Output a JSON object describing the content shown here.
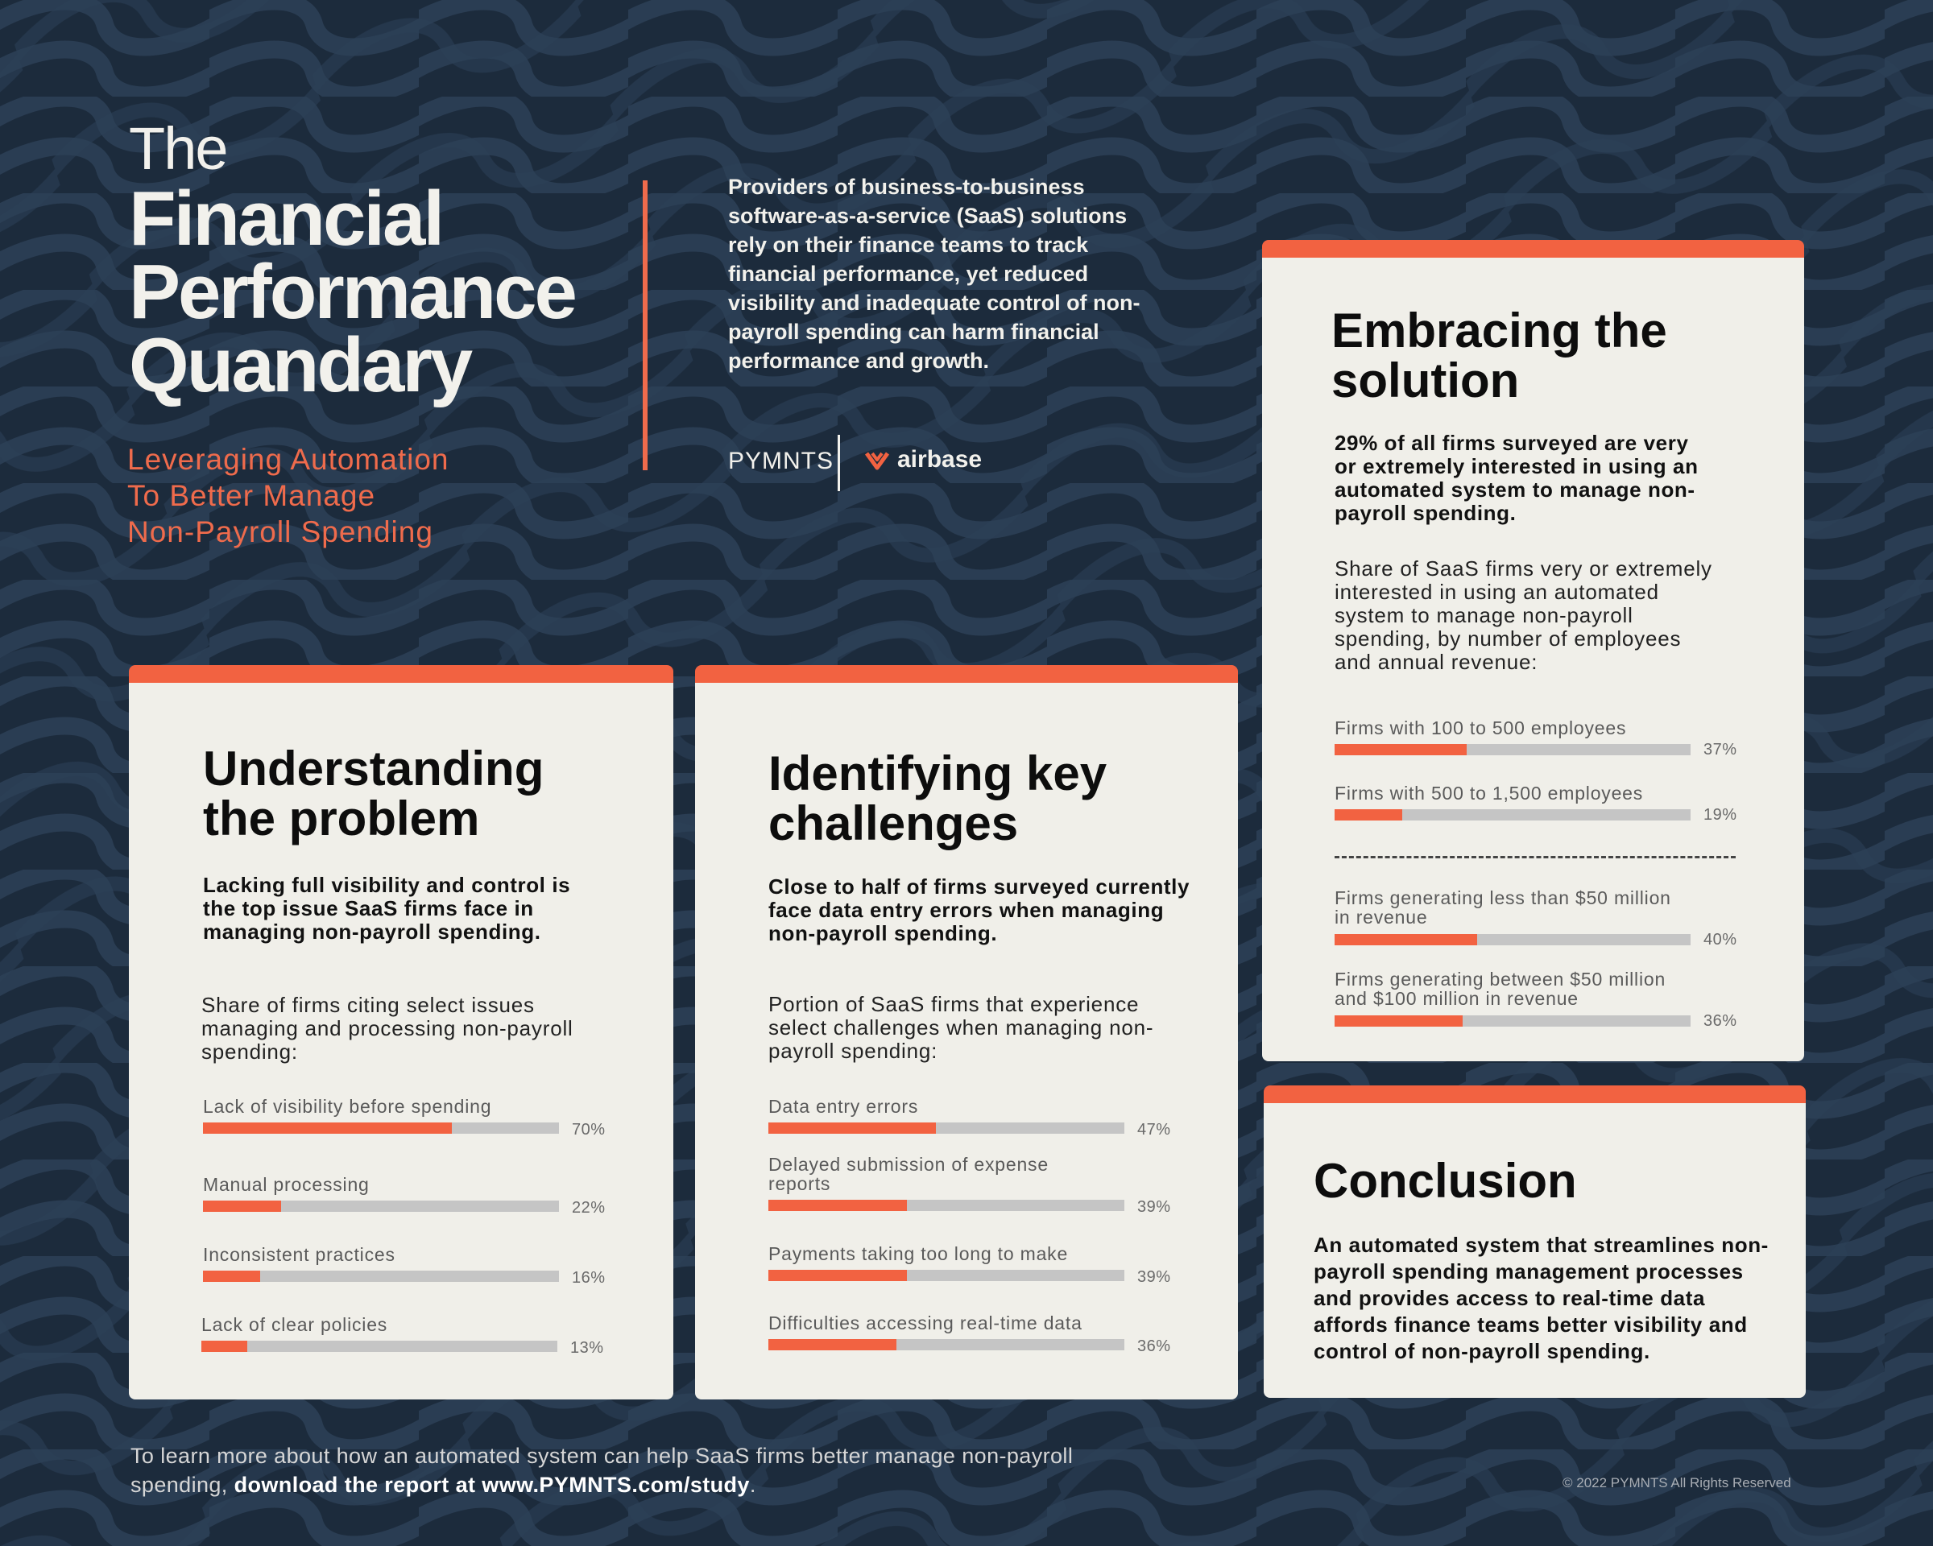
{
  "header": {
    "title_the": "The",
    "title_l1": "Financial",
    "title_l2": "Performance",
    "title_l3": "Quandary",
    "subtitle_l1": "Leveraging Automation",
    "subtitle_l2": "To Better Manage",
    "subtitle_l3": "Non-Payroll Spending",
    "intro": "Providers of business-to-business software-as-a-service (SaaS) solutions rely on their finance teams to track financial performance, yet reduced visibility and inadequate control of non-payroll spending can harm financial performance and growth.",
    "logo_pymnts": "PYMNTS",
    "logo_airbase": "airbase"
  },
  "problem": {
    "title_l1": "Understanding",
    "title_l2": "the problem",
    "lead": "Lacking full visibility and control is the top issue SaaS firms face in managing non-payroll spending.",
    "desc": "Share of firms citing select issues managing and processing non-payroll spending:",
    "bars": [
      {
        "label": "Lack of visibility before spending",
        "pct": "70%",
        "value": 0.7
      },
      {
        "label": "Manual processing",
        "pct": "22%",
        "value": 0.22
      },
      {
        "label": "Inconsistent practices",
        "pct": "16%",
        "value": 0.16
      },
      {
        "label": "Lack of clear policies",
        "pct": "13%",
        "value": 0.13
      }
    ]
  },
  "challenges": {
    "title_l1": "Identifying key",
    "title_l2": "challenges",
    "lead": "Close to half of firms surveyed currently face data entry errors when managing non-payroll spending.",
    "desc": "Portion of SaaS firms that experience select challenges when managing non-payroll spending:",
    "bars": [
      {
        "label": "Data entry errors",
        "pct": "47%",
        "value": 0.47
      },
      {
        "label": "Delayed submission of expense reports",
        "pct": "39%",
        "value": 0.39
      },
      {
        "label": "Payments taking too long to make",
        "pct": "39%",
        "value": 0.39
      },
      {
        "label": "Difficulties accessing real-time data",
        "pct": "36%",
        "value": 0.36
      }
    ]
  },
  "solution": {
    "title_l1": "Embracing the",
    "title_l2": "solution",
    "lead": "29% of all firms surveyed are very or extremely interested in using an automated system to manage non-payroll spending.",
    "desc": "Share of SaaS firms very or extremely interested in using an automated system to manage non-payroll spending, by number of employees and annual revenue:",
    "bars": [
      {
        "label": "Firms with 100 to 500 employees",
        "pct": "37%",
        "value": 0.37
      },
      {
        "label": "Firms with 500 to 1,500 employees",
        "pct": "19%",
        "value": 0.19
      },
      {
        "label": "Firms generating less than $50 million in revenue",
        "pct": "40%",
        "value": 0.4
      },
      {
        "label": "Firms generating between $50 million and $100 million in revenue",
        "pct": "36%",
        "value": 0.36
      }
    ]
  },
  "conclusion": {
    "title": "Conclusion",
    "body": "An automated system that streamlines non-payroll spending management processes and provides access to real-time data affords finance teams better visibility and control of non-payroll spending."
  },
  "footer": {
    "text": "To learn more about how an automated system can help SaaS firms better manage non-payroll spending, ",
    "link": "download the report at www.PYMNTS.com/study",
    "period": ".",
    "copyright": "© 2022 PYMNTS All Rights Reserved"
  },
  "colors": {
    "background": "#1c2b3c",
    "accent": "#f26241",
    "card": "#f0efe9",
    "bar_track": "#c5c5c5"
  }
}
